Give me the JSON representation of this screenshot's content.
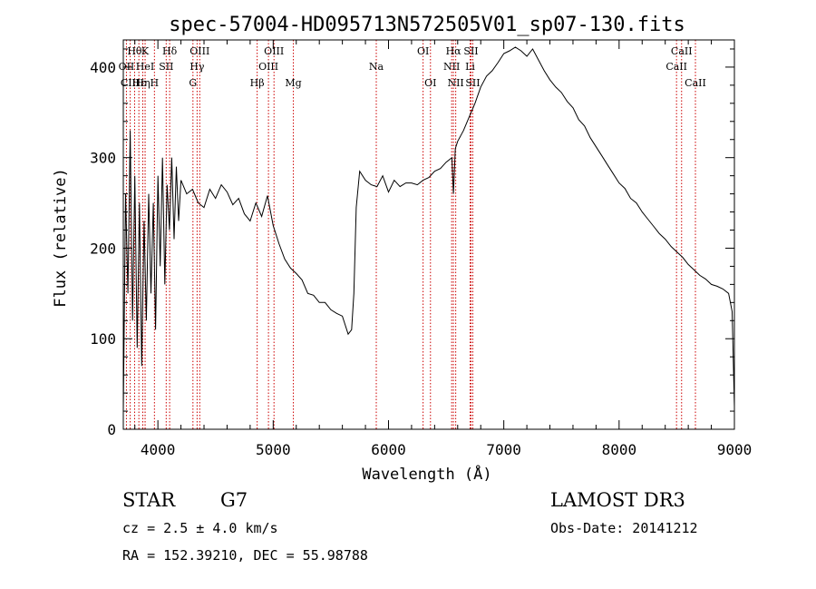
{
  "chart_data": {
    "type": "line",
    "title": "spec-57004-HD095713N572505V01_sp07-130.fits",
    "xlabel": "Wavelength (Å)",
    "ylabel": "Flux (relative)",
    "xlim": [
      3700,
      9000
    ],
    "ylim": [
      0,
      430
    ],
    "grid": false,
    "xticks": [
      4000,
      5000,
      6000,
      7000,
      8000,
      9000
    ],
    "yticks": [
      0,
      100,
      200,
      300,
      400
    ],
    "series": [
      {
        "name": "flux",
        "x": [
          3700,
          3720,
          3740,
          3760,
          3780,
          3800,
          3820,
          3840,
          3860,
          3880,
          3900,
          3920,
          3940,
          3960,
          3980,
          4000,
          4020,
          4040,
          4060,
          4080,
          4100,
          4120,
          4140,
          4160,
          4180,
          4200,
          4250,
          4300,
          4350,
          4400,
          4450,
          4500,
          4550,
          4600,
          4650,
          4700,
          4750,
          4800,
          4850,
          4900,
          4950,
          5000,
          5050,
          5100,
          5150,
          5200,
          5250,
          5300,
          5350,
          5400,
          5450,
          5500,
          5550,
          5600,
          5650,
          5680,
          5700,
          5720,
          5750,
          5800,
          5850,
          5900,
          5950,
          6000,
          6050,
          6100,
          6150,
          6200,
          6250,
          6300,
          6350,
          6400,
          6450,
          6500,
          6550,
          6563,
          6580,
          6600,
          6650,
          6700,
          6750,
          6800,
          6850,
          6900,
          6950,
          7000,
          7050,
          7100,
          7150,
          7200,
          7250,
          7300,
          7350,
          7400,
          7450,
          7500,
          7550,
          7600,
          7650,
          7700,
          7750,
          7800,
          7850,
          7900,
          7950,
          8000,
          8050,
          8100,
          8150,
          8200,
          8250,
          8300,
          8350,
          8400,
          8450,
          8500,
          8550,
          8600,
          8650,
          8700,
          8750,
          8800,
          8850,
          8900,
          8950,
          8980,
          9000
        ],
        "values": [
          20,
          260,
          150,
          330,
          120,
          280,
          90,
          250,
          70,
          230,
          120,
          260,
          150,
          250,
          110,
          280,
          180,
          300,
          160,
          270,
          220,
          300,
          210,
          290,
          230,
          275,
          260,
          265,
          250,
          245,
          265,
          255,
          270,
          262,
          248,
          255,
          238,
          230,
          250,
          235,
          258,
          225,
          205,
          188,
          178,
          172,
          165,
          150,
          148,
          140,
          140,
          132,
          128,
          125,
          105,
          110,
          150,
          245,
          285,
          275,
          270,
          268,
          280,
          262,
          275,
          268,
          272,
          272,
          270,
          275,
          278,
          285,
          288,
          295,
          300,
          260,
          310,
          318,
          330,
          345,
          360,
          378,
          390,
          396,
          405,
          415,
          418,
          422,
          418,
          412,
          420,
          408,
          396,
          386,
          378,
          372,
          362,
          355,
          342,
          335,
          322,
          312,
          302,
          292,
          282,
          272,
          266,
          255,
          250,
          240,
          232,
          224,
          216,
          210,
          202,
          196,
          190,
          182,
          176,
          170,
          166,
          160,
          158,
          155,
          150,
          130,
          25
        ]
      }
    ],
    "line_markers": [
      {
        "label": "Hθ",
        "x": 3798,
        "row": 1
      },
      {
        "label": "OII",
        "x": 3727,
        "row": 2
      },
      {
        "label": "CIII",
        "x": 3760,
        "row": 3
      },
      {
        "label": "Hε",
        "x": 3835,
        "row": 3
      },
      {
        "label": "K",
        "x": 3889,
        "row": 1
      },
      {
        "label": "HeI",
        "x": 3889,
        "row": 2
      },
      {
        "label": "Hη",
        "x": 3869,
        "row": 3
      },
      {
        "label": "H",
        "x": 3970,
        "row": 3
      },
      {
        "label": "Hδ",
        "x": 4102,
        "row": 1
      },
      {
        "label": "SII",
        "x": 4072,
        "row": 2
      },
      {
        "label": "OIII",
        "x": 4363,
        "row": 1
      },
      {
        "label": "Hγ",
        "x": 4340,
        "row": 2
      },
      {
        "label": "G",
        "x": 4304,
        "row": 3
      },
      {
        "label": "Hβ",
        "x": 4861,
        "row": 3
      },
      {
        "label": "OIII",
        "x": 5007,
        "row": 1
      },
      {
        "label": "OIII",
        "x": 4959,
        "row": 2
      },
      {
        "label": "Mg",
        "x": 5175,
        "row": 3
      },
      {
        "label": "Na",
        "x": 5894,
        "row": 2
      },
      {
        "label": "OI",
        "x": 6300,
        "row": 1
      },
      {
        "label": "OI",
        "x": 6364,
        "row": 3
      },
      {
        "label": "Hα",
        "x": 6563,
        "row": 1
      },
      {
        "label": "NII",
        "x": 6548,
        "row": 2
      },
      {
        "label": "NII",
        "x": 6583,
        "row": 3
      },
      {
        "label": "SII",
        "x": 6716,
        "row": 1
      },
      {
        "label": "Li",
        "x": 6708,
        "row": 2
      },
      {
        "label": "SII",
        "x": 6731,
        "row": 3
      },
      {
        "label": "CaII",
        "x": 8498,
        "row": 2
      },
      {
        "label": "CaII",
        "x": 8542,
        "row": 1
      },
      {
        "label": "CaII",
        "x": 8662,
        "row": 3
      }
    ]
  },
  "info": {
    "object_class": "STAR",
    "subclass": "G7",
    "cz": "cz = 2.5 ± 4.0 km/s",
    "coords": "RA = 152.39210, DEC =  55.98788",
    "survey": "LAMOST DR3",
    "obs_date": "Obs-Date: 20141212"
  },
  "colors": {
    "axis": "#000000",
    "marker_line": "#cc0000",
    "spectrum": "#000000"
  }
}
